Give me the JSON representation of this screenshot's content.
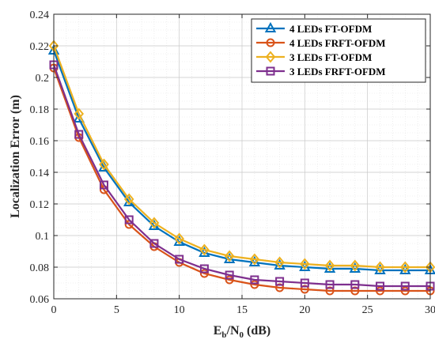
{
  "chart_data": {
    "type": "line",
    "xlabel": {
      "base": "E",
      "sub1": "b",
      "mid": "/N",
      "sub2": "0",
      "tail": " (dB)"
    },
    "ylabel": "Localization Error (m)",
    "xlim": [
      0,
      30
    ],
    "ylim": [
      0.06,
      0.24
    ],
    "xticks": [
      0,
      5,
      10,
      15,
      20,
      25,
      30
    ],
    "yticks": [
      0.06,
      0.08,
      0.1,
      0.12,
      0.14,
      0.16,
      0.18,
      0.2,
      0.22,
      0.24
    ],
    "ytick_labels": [
      "0.06",
      "0.08",
      "0.1",
      "0.12",
      "0.14",
      "0.16",
      "0.18",
      "0.2",
      "0.22",
      "0.24"
    ],
    "grid": true,
    "minor_grid": true,
    "legend_position": "top-right",
    "x": [
      0,
      2,
      4,
      6,
      8,
      10,
      12,
      14,
      16,
      18,
      20,
      22,
      24,
      26,
      28,
      30
    ],
    "series": [
      {
        "name": "4 LEDs FT-OFDM",
        "color": "#0072BD",
        "marker": "triangle",
        "values": [
          0.217,
          0.174,
          0.143,
          0.121,
          0.106,
          0.096,
          0.089,
          0.085,
          0.083,
          0.081,
          0.08,
          0.079,
          0.079,
          0.078,
          0.078,
          0.078
        ]
      },
      {
        "name": "4 LEDs FRFT-OFDM",
        "color": "#D95319",
        "marker": "circle",
        "values": [
          0.206,
          0.162,
          0.129,
          0.107,
          0.093,
          0.083,
          0.076,
          0.072,
          0.069,
          0.067,
          0.066,
          0.065,
          0.065,
          0.065,
          0.065,
          0.065
        ]
      },
      {
        "name": "3 LEDs FT-OFDM",
        "color": "#EDB120",
        "marker": "diamond",
        "values": [
          0.22,
          0.177,
          0.145,
          0.123,
          0.108,
          0.098,
          0.091,
          0.087,
          0.085,
          0.083,
          0.082,
          0.081,
          0.081,
          0.08,
          0.08,
          0.08
        ]
      },
      {
        "name": "3 LEDs FRFT-OFDM",
        "color": "#7E2F8E",
        "marker": "square",
        "values": [
          0.208,
          0.164,
          0.132,
          0.11,
          0.095,
          0.085,
          0.079,
          0.075,
          0.072,
          0.071,
          0.07,
          0.069,
          0.069,
          0.068,
          0.068,
          0.068
        ]
      }
    ]
  }
}
